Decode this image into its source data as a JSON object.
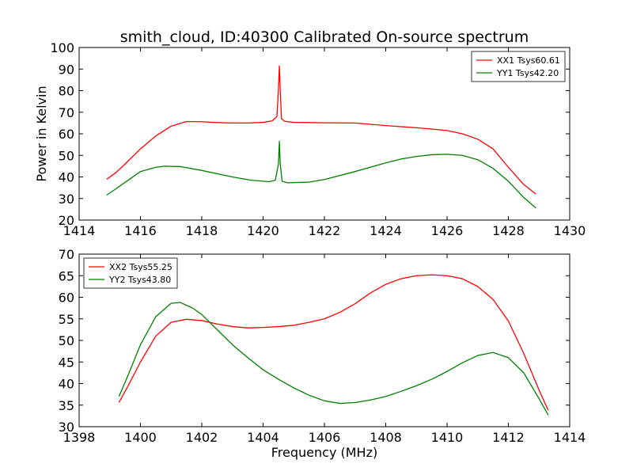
{
  "chart_data": [
    {
      "type": "line",
      "title": "smith_cloud, ID:40300 Calibrated On-source spectrum",
      "xlabel": "",
      "ylabel": "Power in Kelvin",
      "xlim": [
        1414,
        1430
      ],
      "ylim": [
        20,
        100
      ],
      "xticks": [
        1414,
        1416,
        1418,
        1420,
        1422,
        1424,
        1426,
        1428,
        1430
      ],
      "yticks": [
        20,
        30,
        40,
        50,
        60,
        70,
        80,
        90,
        100
      ],
      "grid": false,
      "legend_position": "top-right",
      "series": [
        {
          "name": "XX1 Tsys60.61",
          "color": "#ff0000",
          "points": [
            [
              1414.9,
              38.9
            ],
            [
              1415.2,
              42
            ],
            [
              1415.5,
              46
            ],
            [
              1416.0,
              53
            ],
            [
              1416.5,
              59
            ],
            [
              1417.0,
              63.5
            ],
            [
              1417.5,
              65.7
            ],
            [
              1418.0,
              65.6
            ],
            [
              1418.5,
              65.2
            ],
            [
              1419.0,
              65.0
            ],
            [
              1419.5,
              65.0
            ],
            [
              1420.0,
              65.3
            ],
            [
              1420.3,
              66
            ],
            [
              1420.45,
              68
            ],
            [
              1420.5,
              80
            ],
            [
              1420.53,
              91.5
            ],
            [
              1420.56,
              80
            ],
            [
              1420.6,
              67
            ],
            [
              1420.7,
              65.8
            ],
            [
              1421.0,
              65.3
            ],
            [
              1421.5,
              65.2
            ],
            [
              1422.0,
              65.1
            ],
            [
              1423.0,
              65.0
            ],
            [
              1424.0,
              63.8
            ],
            [
              1425.0,
              62.8
            ],
            [
              1425.5,
              62.2
            ],
            [
              1426.0,
              61.5
            ],
            [
              1426.5,
              60
            ],
            [
              1427.0,
              57.5
            ],
            [
              1427.5,
              53
            ],
            [
              1428.0,
              44.5
            ],
            [
              1428.5,
              36.5
            ],
            [
              1428.9,
              32.0
            ]
          ]
        },
        {
          "name": "YY1 Tsys42.20",
          "color": "#008000",
          "points": [
            [
              1414.9,
              31.6
            ],
            [
              1415.2,
              34.5
            ],
            [
              1415.5,
              37.5
            ],
            [
              1416.0,
              42.5
            ],
            [
              1416.5,
              44.5
            ],
            [
              1416.8,
              45
            ],
            [
              1417.3,
              44.8
            ],
            [
              1418.0,
              43
            ],
            [
              1419.0,
              40
            ],
            [
              1419.6,
              38.5
            ],
            [
              1420.2,
              37.8
            ],
            [
              1420.4,
              38.5
            ],
            [
              1420.5,
              46
            ],
            [
              1420.53,
              56.5
            ],
            [
              1420.56,
              46
            ],
            [
              1420.62,
              38
            ],
            [
              1420.8,
              37.3
            ],
            [
              1421.5,
              37.6
            ],
            [
              1422.0,
              38.8
            ],
            [
              1423.0,
              42.5
            ],
            [
              1424.0,
              46.5
            ],
            [
              1424.5,
              48.3
            ],
            [
              1425.0,
              49.5
            ],
            [
              1425.5,
              50.3
            ],
            [
              1426.0,
              50.5
            ],
            [
              1426.5,
              50
            ],
            [
              1427.0,
              48
            ],
            [
              1427.5,
              44
            ],
            [
              1428.0,
              38
            ],
            [
              1428.5,
              30.5
            ],
            [
              1428.9,
              25.6
            ]
          ]
        }
      ]
    },
    {
      "type": "line",
      "title": "",
      "xlabel": "Frequency (MHz)",
      "ylabel": "",
      "xlim": [
        1398,
        1414
      ],
      "ylim": [
        30,
        70
      ],
      "xticks": [
        1398,
        1400,
        1402,
        1404,
        1406,
        1408,
        1410,
        1412,
        1414
      ],
      "yticks": [
        30,
        35,
        40,
        45,
        50,
        55,
        60,
        65,
        70
      ],
      "grid": false,
      "legend_position": "top-left",
      "series": [
        {
          "name": "XX2 Tsys55.25",
          "color": "#ff0000",
          "points": [
            [
              1399.3,
              35.6
            ],
            [
              1399.6,
              39.5
            ],
            [
              1400.0,
              45
            ],
            [
              1400.5,
              51
            ],
            [
              1401.0,
              54.2
            ],
            [
              1401.5,
              54.9
            ],
            [
              1402.0,
              54.6
            ],
            [
              1402.5,
              53.8
            ],
            [
              1403.0,
              53.2
            ],
            [
              1403.5,
              52.9
            ],
            [
              1404.0,
              53.0
            ],
            [
              1404.5,
              53.2
            ],
            [
              1405.0,
              53.5
            ],
            [
              1405.5,
              54.2
            ],
            [
              1406.0,
              55
            ],
            [
              1406.5,
              56.5
            ],
            [
              1407.0,
              58.5
            ],
            [
              1407.5,
              61
            ],
            [
              1408.0,
              63
            ],
            [
              1408.5,
              64.3
            ],
            [
              1409.0,
              65
            ],
            [
              1409.5,
              65.2
            ],
            [
              1410.0,
              65
            ],
            [
              1410.5,
              64.3
            ],
            [
              1411.0,
              62.5
            ],
            [
              1411.5,
              59.5
            ],
            [
              1412.0,
              54.5
            ],
            [
              1412.5,
              47
            ],
            [
              1413.0,
              38.5
            ],
            [
              1413.3,
              33.8
            ]
          ]
        },
        {
          "name": "YY2 Tsys43.80",
          "color": "#008000",
          "points": [
            [
              1399.3,
              37.0
            ],
            [
              1399.6,
              42
            ],
            [
              1400.0,
              49
            ],
            [
              1400.5,
              55.5
            ],
            [
              1401.0,
              58.6
            ],
            [
              1401.3,
              58.8
            ],
            [
              1401.7,
              57.5
            ],
            [
              1402.0,
              56
            ],
            [
              1402.5,
              52.5
            ],
            [
              1403.0,
              49
            ],
            [
              1403.5,
              46
            ],
            [
              1404.0,
              43.2
            ],
            [
              1404.5,
              41
            ],
            [
              1405.0,
              39
            ],
            [
              1405.5,
              37.3
            ],
            [
              1406.0,
              36
            ],
            [
              1406.5,
              35.4
            ],
            [
              1407.0,
              35.6
            ],
            [
              1407.5,
              36.2
            ],
            [
              1408.0,
              37
            ],
            [
              1408.5,
              38.2
            ],
            [
              1409.0,
              39.5
            ],
            [
              1409.5,
              41
            ],
            [
              1410.0,
              42.8
            ],
            [
              1410.5,
              44.8
            ],
            [
              1411.0,
              46.5
            ],
            [
              1411.5,
              47.2
            ],
            [
              1412.0,
              46
            ],
            [
              1412.5,
              42.5
            ],
            [
              1413.0,
              36.5
            ],
            [
              1413.3,
              32.7
            ]
          ]
        }
      ]
    }
  ]
}
